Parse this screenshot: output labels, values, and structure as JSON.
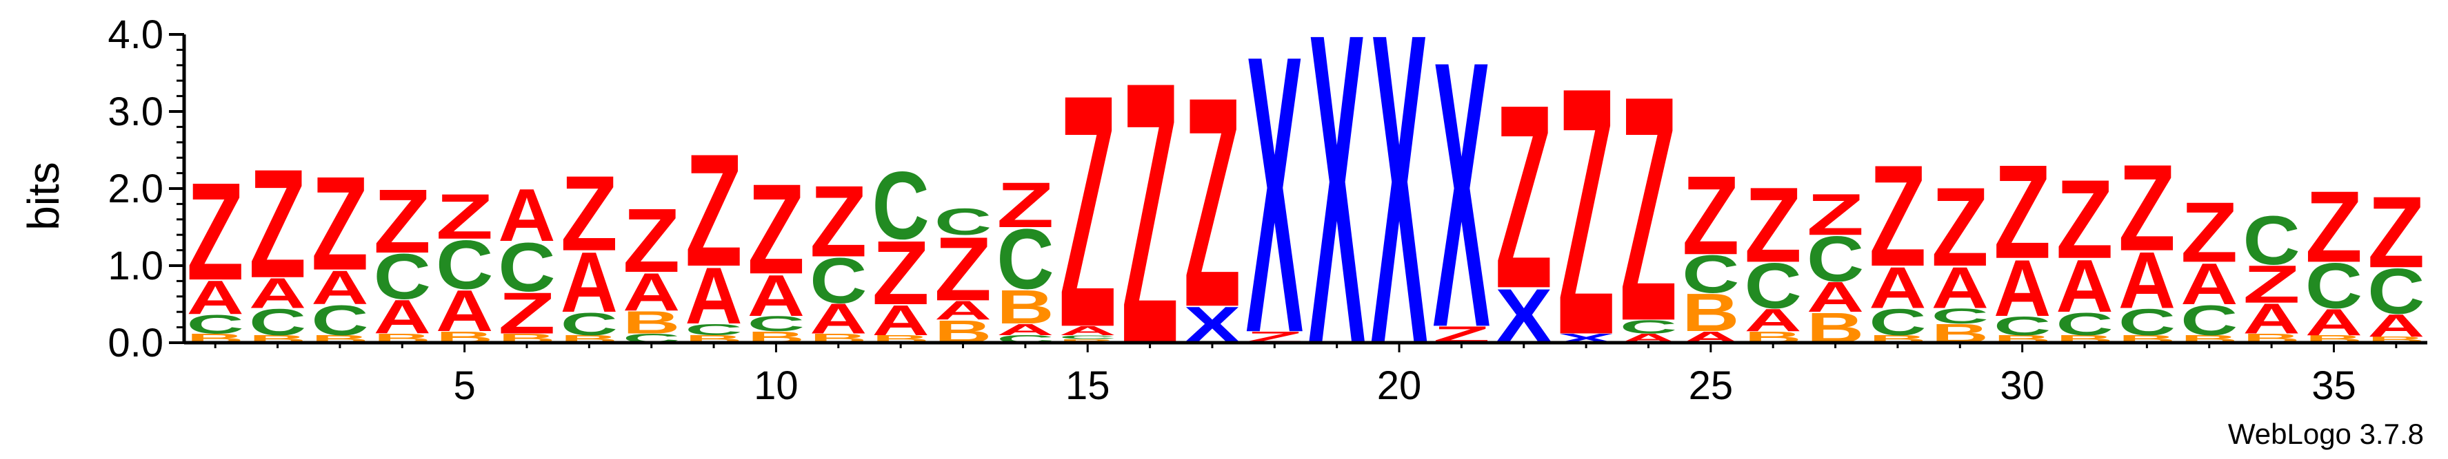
{
  "chart_data": {
    "type": "sequence-logo",
    "ylabel": "bits",
    "ylim": [
      0,
      4.0
    ],
    "yticks": [
      "0.0",
      "1.0",
      "2.0",
      "3.0",
      "4.0"
    ],
    "xticks": [
      5,
      10,
      15,
      20,
      25,
      30,
      35
    ],
    "x_range": [
      1,
      36
    ],
    "credit": "WebLogo 3.7.8",
    "colors": {
      "Z": "#ff0000",
      "A": "#ff0000",
      "C": "#228b22",
      "B": "#ff8c00",
      "X": "#0000ff"
    },
    "positions": [
      {
        "pos": 1,
        "stack": [
          {
            "l": "B",
            "h": 0.12
          },
          {
            "l": "C",
            "h": 0.25
          },
          {
            "l": "A",
            "h": 0.45
          },
          {
            "l": "Z",
            "h": 1.3
          }
        ]
      },
      {
        "pos": 2,
        "stack": [
          {
            "l": "B",
            "h": 0.1
          },
          {
            "l": "C",
            "h": 0.35
          },
          {
            "l": "A",
            "h": 0.4
          },
          {
            "l": "Z",
            "h": 1.45
          }
        ]
      },
      {
        "pos": 3,
        "stack": [
          {
            "l": "B",
            "h": 0.1
          },
          {
            "l": "C",
            "h": 0.4
          },
          {
            "l": "A",
            "h": 0.45
          },
          {
            "l": "Z",
            "h": 1.25
          }
        ]
      },
      {
        "pos": 4,
        "stack": [
          {
            "l": "B",
            "h": 0.12
          },
          {
            "l": "A",
            "h": 0.45
          },
          {
            "l": "C",
            "h": 0.6
          },
          {
            "l": "Z",
            "h": 0.85
          }
        ]
      },
      {
        "pos": 5,
        "stack": [
          {
            "l": "B",
            "h": 0.15
          },
          {
            "l": "A",
            "h": 0.55
          },
          {
            "l": "C",
            "h": 0.65
          },
          {
            "l": "Z",
            "h": 0.6
          }
        ]
      },
      {
        "pos": 6,
        "stack": [
          {
            "l": "B",
            "h": 0.12
          },
          {
            "l": "Z",
            "h": 0.55
          },
          {
            "l": "C",
            "h": 0.65
          },
          {
            "l": "A",
            "h": 0.7
          }
        ]
      },
      {
        "pos": 7,
        "stack": [
          {
            "l": "B",
            "h": 0.1
          },
          {
            "l": "C",
            "h": 0.3
          },
          {
            "l": "A",
            "h": 0.8
          },
          {
            "l": "Z",
            "h": 1.0
          }
        ]
      },
      {
        "pos": 8,
        "stack": [
          {
            "l": "C",
            "h": 0.12
          },
          {
            "l": "B",
            "h": 0.3
          },
          {
            "l": "A",
            "h": 0.5
          },
          {
            "l": "Z",
            "h": 0.85
          }
        ]
      },
      {
        "pos": 9,
        "stack": [
          {
            "l": "B",
            "h": 0.1
          },
          {
            "l": "C",
            "h": 0.15
          },
          {
            "l": "A",
            "h": 0.75
          },
          {
            "l": "Z",
            "h": 1.5
          }
        ]
      },
      {
        "pos": 10,
        "stack": [
          {
            "l": "B",
            "h": 0.15
          },
          {
            "l": "C",
            "h": 0.2
          },
          {
            "l": "A",
            "h": 0.55
          },
          {
            "l": "Z",
            "h": 1.2
          }
        ]
      },
      {
        "pos": 11,
        "stack": [
          {
            "l": "B",
            "h": 0.12
          },
          {
            "l": "A",
            "h": 0.4
          },
          {
            "l": "C",
            "h": 0.6
          },
          {
            "l": "Z",
            "h": 0.95
          }
        ]
      },
      {
        "pos": 12,
        "stack": [
          {
            "l": "B",
            "h": 0.1
          },
          {
            "l": "A",
            "h": 0.4
          },
          {
            "l": "Z",
            "h": 0.85
          },
          {
            "l": "C",
            "h": 0.9
          }
        ]
      },
      {
        "pos": 13,
        "stack": [
          {
            "l": "B",
            "h": 0.3
          },
          {
            "l": "A",
            "h": 0.25
          },
          {
            "l": "Z",
            "h": 0.85
          },
          {
            "l": "C",
            "h": 0.35
          }
        ]
      },
      {
        "pos": 14,
        "stack": [
          {
            "l": "C",
            "h": 0.1
          },
          {
            "l": "A",
            "h": 0.15
          },
          {
            "l": "B",
            "h": 0.45
          },
          {
            "l": "C",
            "h": 0.8
          },
          {
            "l": "Z",
            "h": 0.6
          }
        ]
      },
      {
        "pos": 15,
        "stack": [
          {
            "l": "B",
            "h": 0.05
          },
          {
            "l": "C",
            "h": 0.05
          },
          {
            "l": "A",
            "h": 0.12
          },
          {
            "l": "Z",
            "h": 3.1
          }
        ]
      },
      {
        "pos": 16,
        "stack": [
          {
            "l": "Z",
            "h": 3.5
          }
        ]
      },
      {
        "pos": 17,
        "stack": [
          {
            "l": "X",
            "h": 0.48
          },
          {
            "l": "Z",
            "h": 2.8
          }
        ]
      },
      {
        "pos": 18,
        "stack": [
          {
            "l": "Z",
            "h": 0.15
          },
          {
            "l": "X",
            "h": 3.7
          }
        ]
      },
      {
        "pos": 19,
        "stack": [
          {
            "l": "X",
            "h": 4.15
          }
        ]
      },
      {
        "pos": 20,
        "stack": [
          {
            "l": "X",
            "h": 4.15
          }
        ]
      },
      {
        "pos": 21,
        "stack": [
          {
            "l": "Z",
            "h": 0.22
          },
          {
            "l": "X",
            "h": 3.55
          }
        ]
      },
      {
        "pos": 22,
        "stack": [
          {
            "l": "X",
            "h": 0.72
          },
          {
            "l": "Z",
            "h": 2.45
          }
        ]
      },
      {
        "pos": 23,
        "stack": [
          {
            "l": "X",
            "h": 0.12
          },
          {
            "l": "Z",
            "h": 3.3
          }
        ]
      },
      {
        "pos": 24,
        "stack": [
          {
            "l": "A",
            "h": 0.12
          },
          {
            "l": "C",
            "h": 0.18
          },
          {
            "l": "Z",
            "h": 3.0
          }
        ]
      },
      {
        "pos": 25,
        "stack": [
          {
            "l": "A",
            "h": 0.15
          },
          {
            "l": "B",
            "h": 0.5
          },
          {
            "l": "C",
            "h": 0.5
          },
          {
            "l": "Z",
            "h": 1.05
          }
        ]
      },
      {
        "pos": 26,
        "stack": [
          {
            "l": "B",
            "h": 0.15
          },
          {
            "l": "A",
            "h": 0.3
          },
          {
            "l": "C",
            "h": 0.6
          },
          {
            "l": "Z",
            "h": 1.0
          }
        ]
      },
      {
        "pos": 27,
        "stack": [
          {
            "l": "B",
            "h": 0.4
          },
          {
            "l": "A",
            "h": 0.4
          },
          {
            "l": "C",
            "h": 0.6
          },
          {
            "l": "Z",
            "h": 0.55
          }
        ]
      },
      {
        "pos": 28,
        "stack": [
          {
            "l": "B",
            "h": 0.1
          },
          {
            "l": "C",
            "h": 0.35
          },
          {
            "l": "A",
            "h": 0.55
          },
          {
            "l": "Z",
            "h": 1.35
          }
        ]
      },
      {
        "pos": 29,
        "stack": [
          {
            "l": "B",
            "h": 0.25
          },
          {
            "l": "C",
            "h": 0.2
          },
          {
            "l": "A",
            "h": 0.55
          },
          {
            "l": "Z",
            "h": 1.05
          }
        ]
      },
      {
        "pos": 30,
        "stack": [
          {
            "l": "B",
            "h": 0.1
          },
          {
            "l": "C",
            "h": 0.25
          },
          {
            "l": "A",
            "h": 0.75
          },
          {
            "l": "Z",
            "h": 1.25
          }
        ]
      },
      {
        "pos": 31,
        "stack": [
          {
            "l": "B",
            "h": 0.1
          },
          {
            "l": "C",
            "h": 0.3
          },
          {
            "l": "A",
            "h": 0.7
          },
          {
            "l": "Z",
            "h": 1.05
          }
        ]
      },
      {
        "pos": 32,
        "stack": [
          {
            "l": "B",
            "h": 0.1
          },
          {
            "l": "C",
            "h": 0.35
          },
          {
            "l": "A",
            "h": 0.75
          },
          {
            "l": "Z",
            "h": 1.15
          }
        ]
      },
      {
        "pos": 33,
        "stack": [
          {
            "l": "B",
            "h": 0.1
          },
          {
            "l": "C",
            "h": 0.4
          },
          {
            "l": "A",
            "h": 0.55
          },
          {
            "l": "Z",
            "h": 0.8
          }
        ]
      },
      {
        "pos": 34,
        "stack": [
          {
            "l": "B",
            "h": 0.12
          },
          {
            "l": "A",
            "h": 0.4
          },
          {
            "l": "Z",
            "h": 0.5
          },
          {
            "l": "C",
            "h": 0.65
          }
        ]
      },
      {
        "pos": 35,
        "stack": [
          {
            "l": "B",
            "h": 0.1
          },
          {
            "l": "A",
            "h": 0.35
          },
          {
            "l": "C",
            "h": 0.6
          },
          {
            "l": "Z",
            "h": 0.95
          }
        ]
      },
      {
        "pos": 36,
        "stack": [
          {
            "l": "B",
            "h": 0.08
          },
          {
            "l": "A",
            "h": 0.3
          },
          {
            "l": "C",
            "h": 0.6
          },
          {
            "l": "Z",
            "h": 0.95
          }
        ]
      }
    ]
  }
}
